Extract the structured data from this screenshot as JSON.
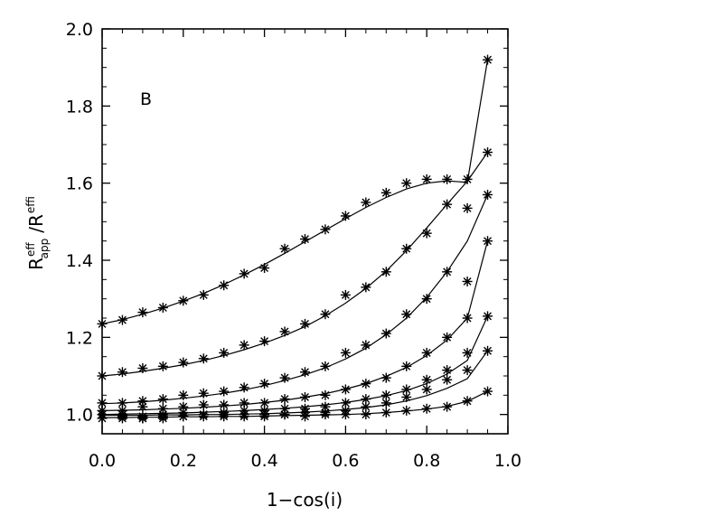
{
  "chart_data": {
    "type": "scatter",
    "panel_label": "B",
    "xlabel": "1−cos(i)",
    "ylabel": {
      "main_a": "R",
      "sup_a": "eff",
      "sub_a": "app",
      "slash": "/",
      "main_b": "R",
      "sup_b": "eff",
      "sub_b": "i"
    },
    "xlim": [
      0.0,
      1.0
    ],
    "ylim": [
      0.95,
      2.0
    ],
    "x_ticks": [
      0.0,
      0.2,
      0.4,
      0.6,
      0.8,
      1.0
    ],
    "x_tick_labels": [
      "0.0",
      "0.2",
      "0.4",
      "0.6",
      "0.8",
      "1.0"
    ],
    "y_ticks": [
      1.0,
      1.2,
      1.4,
      1.6,
      1.8,
      2.0
    ],
    "y_tick_labels": [
      "1.0",
      "1.2",
      "1.4",
      "1.6",
      "1.8",
      "2.0"
    ],
    "marker": "asterisk",
    "grid": false,
    "x": [
      0.0,
      0.05,
      0.1,
      0.15,
      0.2,
      0.25,
      0.3,
      0.35,
      0.4,
      0.45,
      0.5,
      0.55,
      0.6,
      0.65,
      0.7,
      0.75,
      0.8,
      0.85,
      0.9,
      0.95
    ],
    "series": [
      {
        "points": [
          1.235,
          1.245,
          1.265,
          1.277,
          1.295,
          1.31,
          1.335,
          1.365,
          1.38,
          1.43,
          1.455,
          1.48,
          1.515,
          1.55,
          1.575,
          1.6,
          1.61,
          1.61,
          1.61,
          1.92
        ],
        "curve": [
          1.235,
          1.246,
          1.26,
          1.276,
          1.294,
          1.314,
          1.337,
          1.362,
          1.389,
          1.418,
          1.448,
          1.478,
          1.508,
          1.537,
          1.563,
          1.585,
          1.6,
          1.606,
          1.602,
          1.92
        ]
      },
      {
        "points": [
          1.1,
          1.11,
          1.12,
          1.125,
          1.135,
          1.145,
          1.16,
          1.18,
          1.19,
          1.215,
          1.235,
          1.26,
          1.31,
          1.33,
          1.37,
          1.43,
          1.47,
          1.545,
          1.535,
          1.68
        ],
        "curve": [
          1.1,
          1.105,
          1.112,
          1.12,
          1.129,
          1.14,
          1.153,
          1.168,
          1.185,
          1.205,
          1.228,
          1.256,
          1.289,
          1.327,
          1.372,
          1.425,
          1.484,
          1.545,
          1.605,
          1.68
        ]
      },
      {
        "points": [
          1.03,
          1.03,
          1.035,
          1.04,
          1.05,
          1.055,
          1.06,
          1.07,
          1.08,
          1.095,
          1.11,
          1.125,
          1.16,
          1.18,
          1.21,
          1.26,
          1.3,
          1.37,
          1.345,
          1.57
        ],
        "curve": [
          1.028,
          1.03,
          1.033,
          1.037,
          1.042,
          1.048,
          1.055,
          1.064,
          1.075,
          1.088,
          1.103,
          1.121,
          1.144,
          1.172,
          1.207,
          1.25,
          1.304,
          1.37,
          1.45,
          1.57
        ]
      },
      {
        "points": [
          1.01,
          1.01,
          1.02,
          1.015,
          1.02,
          1.025,
          1.025,
          1.03,
          1.03,
          1.04,
          1.045,
          1.05,
          1.065,
          1.08,
          1.095,
          1.125,
          1.16,
          1.2,
          1.25,
          1.45
        ],
        "curve": [
          1.01,
          1.011,
          1.012,
          1.014,
          1.016,
          1.019,
          1.022,
          1.026,
          1.031,
          1.037,
          1.045,
          1.054,
          1.066,
          1.08,
          1.099,
          1.122,
          1.153,
          1.193,
          1.25,
          1.45
        ]
      },
      {
        "points": [
          1.0,
          1.0,
          0.995,
          1.0,
          1.005,
          1.0,
          1.005,
          1.01,
          1.01,
          1.015,
          1.015,
          1.02,
          1.03,
          1.04,
          1.05,
          1.065,
          1.09,
          1.115,
          1.16,
          1.255
        ],
        "curve": [
          1.0,
          1.001,
          1.002,
          1.003,
          1.004,
          1.006,
          1.008,
          1.01,
          1.013,
          1.016,
          1.02,
          1.025,
          1.031,
          1.039,
          1.049,
          1.062,
          1.08,
          1.105,
          1.14,
          1.255
        ]
      },
      {
        "points": [
          1.0,
          0.995,
          0.99,
          0.995,
          0.995,
          1.0,
          1.0,
          1.0,
          1.0,
          1.0,
          1.005,
          1.005,
          1.01,
          1.02,
          1.03,
          1.045,
          1.065,
          1.09,
          1.115,
          1.165
        ],
        "curve": [
          0.998,
          0.998,
          0.998,
          0.999,
          0.999,
          1.0,
          1.0,
          1.001,
          1.002,
          1.004,
          1.006,
          1.009,
          1.013,
          1.018,
          1.025,
          1.035,
          1.049,
          1.068,
          1.093,
          1.165
        ]
      },
      {
        "points": [
          0.99,
          0.99,
          0.99,
          0.99,
          0.995,
          0.995,
          0.995,
          0.995,
          0.995,
          1.0,
          0.995,
          1.0,
          1.0,
          1.0,
          1.005,
          1.01,
          1.015,
          1.02,
          1.035,
          1.06
        ],
        "curve": [
          0.992,
          0.992,
          0.993,
          0.993,
          0.994,
          0.994,
          0.995,
          0.995,
          0.996,
          0.997,
          0.998,
          0.999,
          1.0,
          1.002,
          1.005,
          1.009,
          1.014,
          1.021,
          1.034,
          1.06
        ]
      }
    ]
  }
}
